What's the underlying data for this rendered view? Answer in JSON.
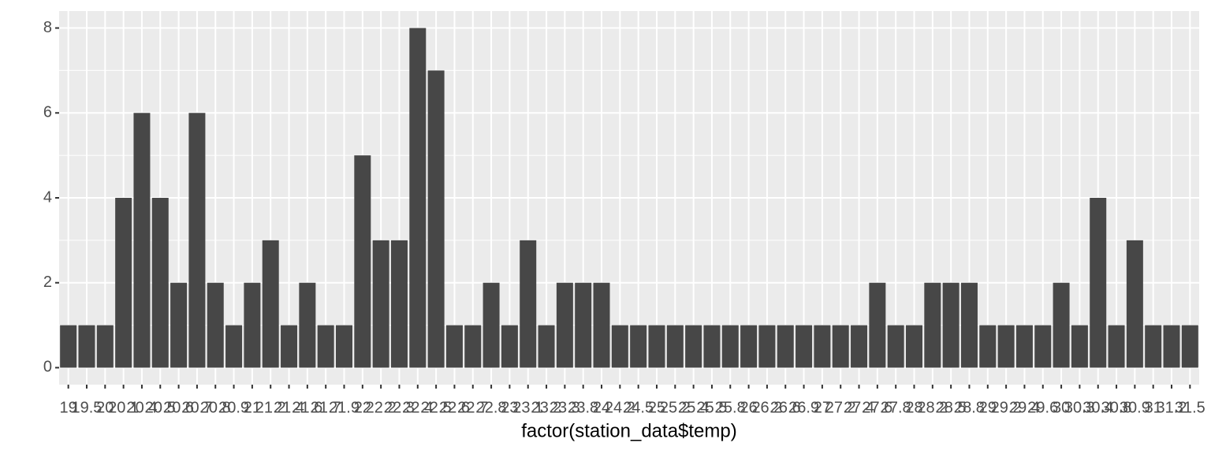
{
  "chart_data": {
    "type": "bar",
    "x_label": "factor(station_data$temp)",
    "categories": [
      "19",
      "19.5",
      "20",
      "20.1",
      "20.4",
      "20.5",
      "20.6",
      "20.7",
      "20.8",
      "20.9",
      "21",
      "21.2",
      "21.4",
      "21.6",
      "21.7",
      "21.9",
      "22",
      "22.2",
      "22.3",
      "22.4",
      "22.5",
      "22.6",
      "22.7",
      "22.8",
      "23",
      "23.1",
      "23.2",
      "23.3",
      "23.8",
      "24",
      "24.2",
      "24.5",
      "25",
      "25.2",
      "25.4",
      "25.5",
      "25.8",
      "26",
      "26.2",
      "26.6",
      "26.9",
      "27",
      "27.2",
      "27.4",
      "27.6",
      "27.8",
      "28",
      "28.2",
      "28.5",
      "28.8",
      "29",
      "29.2",
      "29.4",
      "29.6",
      "30",
      "30.3",
      "30.4",
      "30.8",
      "30.9",
      "31",
      "31.2",
      "31.5"
    ],
    "values": [
      1,
      1,
      1,
      4,
      6,
      4,
      2,
      6,
      2,
      1,
      2,
      3,
      1,
      2,
      1,
      1,
      5,
      3,
      3,
      8,
      7,
      1,
      1,
      2,
      1,
      3,
      1,
      2,
      2,
      2,
      1,
      1,
      1,
      1,
      1,
      1,
      1,
      1,
      1,
      1,
      1,
      1,
      1,
      1,
      2,
      1,
      1,
      2,
      2,
      2,
      1,
      1,
      1,
      1,
      2,
      1,
      4,
      1,
      3,
      1,
      1,
      1
    ],
    "color": "#474747",
    "ylim": [
      -0.4,
      8.4
    ],
    "yticks": [
      0,
      2,
      4,
      6,
      8
    ],
    "grid": true
  }
}
